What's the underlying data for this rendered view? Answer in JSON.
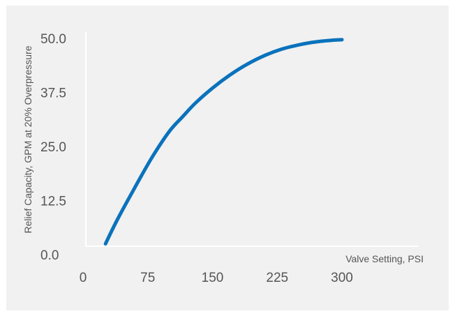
{
  "chart_data": {
    "type": "line",
    "title": "",
    "xlabel": "Valve Setting, PSI",
    "ylabel": "Relief Capacity, GPM at 20% Overpressure",
    "xlim": [
      0,
      300
    ],
    "ylim": [
      0,
      50
    ],
    "x_ticks": [
      "0",
      "75",
      "150",
      "225",
      "300"
    ],
    "y_ticks": [
      "0.0",
      "12.5",
      "25.0",
      "37.5",
      "50.0"
    ],
    "grid": false,
    "legend": "none",
    "colors": {
      "line": "#0a72bc",
      "axis": "#ffffff",
      "background": "#f1f1f1",
      "text": "#555555"
    },
    "series": [
      {
        "x": [
          26,
          40,
          60,
          80,
          100,
          115,
          130,
          150,
          170,
          190,
          210,
          230,
          250,
          270,
          290,
          300
        ],
        "y": [
          2.5,
          8.2,
          15.5,
          22.5,
          28.5,
          31.8,
          35.0,
          38.5,
          41.5,
          44.0,
          46.0,
          47.5,
          48.5,
          49.2,
          49.6,
          49.7
        ]
      }
    ]
  }
}
